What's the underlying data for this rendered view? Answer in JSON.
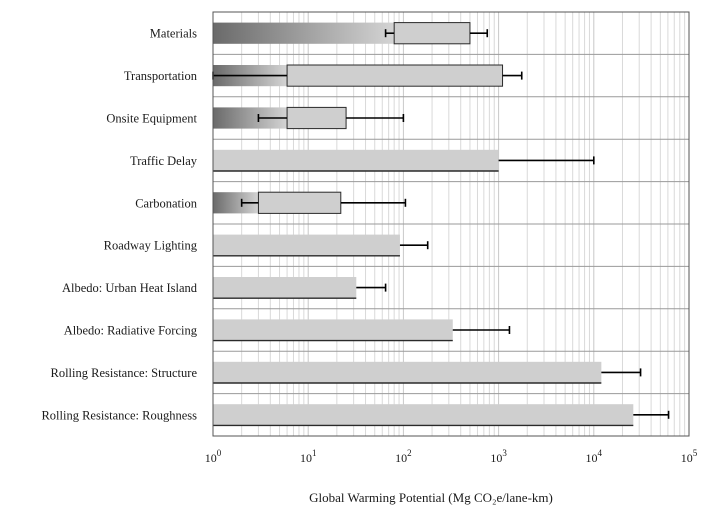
{
  "chart_data": {
    "type": "bar",
    "orientation": "horizontal",
    "xscale": "log",
    "xlim": [
      1,
      100000
    ],
    "xlabel": "Global Warming Potential (Mg CO₂e/lane-km)",
    "xtick_values": [
      1,
      10,
      100,
      1000,
      10000,
      100000
    ],
    "xtick_labels": [
      {
        "base": "10",
        "exp": "0"
      },
      {
        "base": "10",
        "exp": "1"
      },
      {
        "base": "10",
        "exp": "2"
      },
      {
        "base": "10",
        "exp": "3"
      },
      {
        "base": "10",
        "exp": "4"
      },
      {
        "base": "10",
        "exp": "5"
      }
    ],
    "grid": {
      "vertical_minor": true,
      "horizontal_separators": true
    },
    "legend": "none",
    "categories": [
      "Materials",
      "Transportation",
      "Onsite Equipment",
      "Traffic Delay",
      "Carbonation",
      "Roadway Lighting",
      "Albedo: Urban Heat Island",
      "Albedo: Radiative Forcing",
      "Rolling Resistance: Structure",
      "Rolling Resistance: Roughness"
    ],
    "range_low": [
      80,
      6,
      6,
      null,
      3,
      null,
      null,
      null,
      null,
      null
    ],
    "range_high": [
      500,
      1100,
      25,
      1000,
      22,
      92,
      32,
      330,
      12000,
      26000
    ],
    "error_low": [
      65,
      1,
      3,
      null,
      2,
      null,
      null,
      null,
      null,
      null
    ],
    "error_high": [
      760,
      1750,
      100,
      10000,
      105,
      180,
      65,
      1300,
      31000,
      61000
    ]
  },
  "colors": {
    "bar_fill": "#cfcfcf",
    "bar_stroke": "#2a2a2a",
    "low_segment_dark": "#6a6a6a",
    "low_segment_light": "#d4d4d4",
    "grid": "#d9d9d9",
    "separator": "#9a9a9a",
    "error_bar": "#000000"
  }
}
